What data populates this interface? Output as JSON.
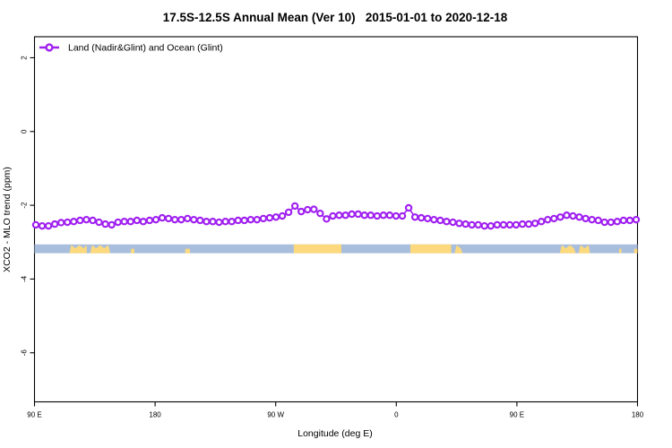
{
  "title": "17.5S-12.5S Annual Mean (Ver 10)   2015-01-01 to 2020-12-18",
  "legend": {
    "label": "Land (Nadir&Glint) and Ocean (Glint)"
  },
  "colors": {
    "series": "#A020F0",
    "marker_fill": "#FFFFFF",
    "ocean": "#A9BEDC",
    "land": "#FCD97D",
    "axis": "#000000",
    "background": "#FFFFFF"
  },
  "chart_data": {
    "type": "line",
    "title": "17.5S-12.5S Annual Mean (Ver 10)   2015-01-01 to 2020-12-18",
    "xlabel": "Longitude (deg E)",
    "ylabel": "XCO2 - MLO trend (ppm)",
    "x_axis_wraps": "x axis starts at 90E, passes 180, 90W, 0 and ends at 180 again (450 deg span)",
    "x_axis_span_deg": [
      0,
      450
    ],
    "x_tick_deg": [
      0,
      90,
      180,
      270,
      360,
      450
    ],
    "x_tick_labels": [
      "90 E",
      "180",
      "90 W",
      "0",
      "90 E",
      "180"
    ],
    "y_ticks": [
      2,
      0,
      -2,
      -4,
      -6
    ],
    "y_tick_labels": [
      "2",
      "0",
      "-2",
      "-4",
      "-6"
    ],
    "ylim": [
      -7.33,
      2.57
    ],
    "grid": false,
    "legend_position": "top-left-inside",
    "series": [
      {
        "name": "Land (Nadir&Glint) and Ocean (Glint)",
        "color": "#A020F0",
        "marker": "open-circle",
        "x_start_deg": 1.0,
        "x_step_deg": 4.7158,
        "values": [
          -2.53,
          -2.56,
          -2.56,
          -2.51,
          -2.47,
          -2.46,
          -2.44,
          -2.41,
          -2.39,
          -2.41,
          -2.46,
          -2.51,
          -2.53,
          -2.46,
          -2.44,
          -2.44,
          -2.41,
          -2.44,
          -2.41,
          -2.39,
          -2.34,
          -2.36,
          -2.39,
          -2.39,
          -2.36,
          -2.39,
          -2.41,
          -2.44,
          -2.44,
          -2.46,
          -2.44,
          -2.44,
          -2.41,
          -2.41,
          -2.39,
          -2.39,
          -2.36,
          -2.34,
          -2.32,
          -2.29,
          -2.19,
          -2.02,
          -2.17,
          -2.12,
          -2.11,
          -2.22,
          -2.37,
          -2.29,
          -2.27,
          -2.27,
          -2.24,
          -2.24,
          -2.27,
          -2.27,
          -2.29,
          -2.27,
          -2.27,
          -2.29,
          -2.29,
          -2.07,
          -2.32,
          -2.34,
          -2.36,
          -2.39,
          -2.41,
          -2.44,
          -2.46,
          -2.49,
          -2.51,
          -2.53,
          -2.53,
          -2.56,
          -2.56,
          -2.53,
          -2.53,
          -2.53,
          -2.53,
          -2.51,
          -2.51,
          -2.49,
          -2.44,
          -2.39,
          -2.36,
          -2.32,
          -2.27,
          -2.29,
          -2.32,
          -2.36,
          -2.39,
          -2.41,
          -2.46,
          -2.46,
          -2.44,
          -2.41,
          -2.41,
          -2.39
        ]
      }
    ],
    "land_ocean_strip": {
      "description": "ocean/land map strip for latitude band 17.5S-12.5S",
      "value_top": -3.06,
      "value_bottom": -3.3,
      "ocean_color": "#A9BEDC",
      "land_color": "#FCD97D",
      "land_segments_deg": [
        {
          "from": 26,
          "to": 39,
          "style": "jagged"
        },
        {
          "from": 41.5,
          "to": 56.5,
          "style": "jagged"
        },
        {
          "from": 72,
          "to": 74.5,
          "style": "low"
        },
        {
          "from": 112.5,
          "to": 116,
          "style": "low"
        },
        {
          "from": 193.5,
          "to": 229,
          "style": "solid"
        },
        {
          "from": 280.5,
          "to": 311,
          "style": "solid"
        },
        {
          "from": 313.5,
          "to": 319.5,
          "style": "jagged"
        },
        {
          "from": 392,
          "to": 404,
          "style": "jagged"
        },
        {
          "from": 406,
          "to": 414.5,
          "style": "jagged"
        },
        {
          "from": 436.3,
          "to": 438,
          "style": "low"
        },
        {
          "from": 447.5,
          "to": 450,
          "style": "low"
        }
      ]
    }
  }
}
